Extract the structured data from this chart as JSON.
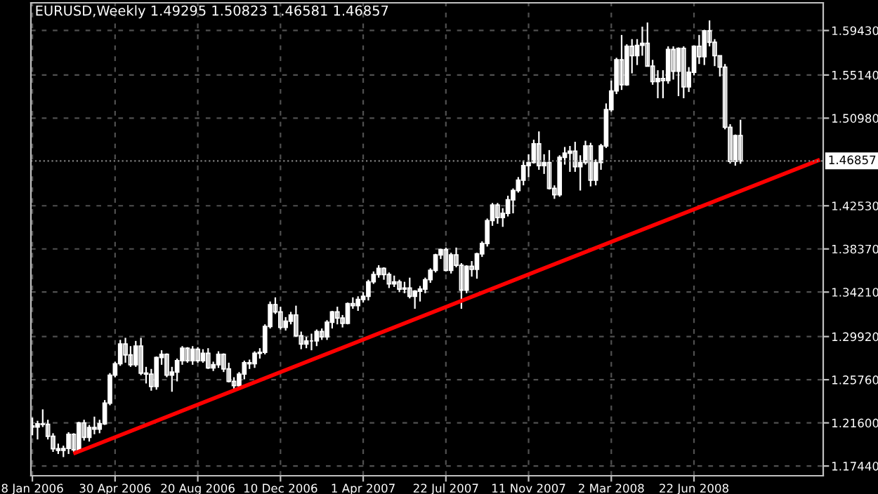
{
  "chart_data": {
    "type": "candlestick",
    "title": "EURUSD,Weekly 1.49295 1.50823 1.46581 1.46857",
    "x": [
      "2006-01-08",
      "2006-01-15",
      "2006-01-22",
      "2006-01-29",
      "2006-02-05",
      "2006-02-12",
      "2006-02-19",
      "2006-02-26",
      "2006-03-05",
      "2006-03-12",
      "2006-03-19",
      "2006-03-26",
      "2006-04-02",
      "2006-04-09",
      "2006-04-16",
      "2006-04-23",
      "2006-04-30",
      "2006-05-07",
      "2006-05-14",
      "2006-05-21",
      "2006-05-28",
      "2006-06-04",
      "2006-06-11",
      "2006-06-18",
      "2006-06-25",
      "2006-07-02",
      "2006-07-09",
      "2006-07-16",
      "2006-07-23",
      "2006-07-30",
      "2006-08-06",
      "2006-08-13",
      "2006-08-20",
      "2006-08-27",
      "2006-09-03",
      "2006-09-10",
      "2006-09-17",
      "2006-09-24",
      "2006-10-01",
      "2006-10-08",
      "2006-10-15",
      "2006-10-22",
      "2006-10-29",
      "2006-11-05",
      "2006-11-12",
      "2006-11-19",
      "2006-11-26",
      "2006-12-03",
      "2006-12-10",
      "2006-12-17",
      "2006-12-24",
      "2006-12-31",
      "2007-01-07",
      "2007-01-14",
      "2007-01-21",
      "2007-01-28",
      "2007-02-04",
      "2007-02-11",
      "2007-02-18",
      "2007-02-25",
      "2007-03-04",
      "2007-03-11",
      "2007-03-18",
      "2007-03-25",
      "2007-04-01",
      "2007-04-08",
      "2007-04-15",
      "2007-04-22",
      "2007-04-29",
      "2007-05-06",
      "2007-05-13",
      "2007-05-20",
      "2007-05-27",
      "2007-06-03",
      "2007-06-10",
      "2007-06-17",
      "2007-06-24",
      "2007-07-01",
      "2007-07-08",
      "2007-07-15",
      "2007-07-22",
      "2007-07-29",
      "2007-08-05",
      "2007-08-12",
      "2007-08-19",
      "2007-08-26",
      "2007-09-02",
      "2007-09-09",
      "2007-09-16",
      "2007-09-23",
      "2007-09-30",
      "2007-10-07",
      "2007-10-14",
      "2007-10-21",
      "2007-10-28",
      "2007-11-04",
      "2007-11-11",
      "2007-11-18",
      "2007-11-25",
      "2007-12-02",
      "2007-12-09",
      "2007-12-16",
      "2007-12-23",
      "2007-12-30",
      "2008-01-06",
      "2008-01-13",
      "2008-01-20",
      "2008-01-27",
      "2008-02-03",
      "2008-02-10",
      "2008-02-17",
      "2008-02-24",
      "2008-03-02",
      "2008-03-09",
      "2008-03-16",
      "2008-03-23",
      "2008-03-30",
      "2008-04-06",
      "2008-04-13",
      "2008-04-20",
      "2008-04-27",
      "2008-05-04",
      "2008-05-11",
      "2008-05-18",
      "2008-05-25",
      "2008-06-01",
      "2008-06-08",
      "2008-06-15",
      "2008-06-22",
      "2008-06-29",
      "2008-07-06",
      "2008-07-13",
      "2008-07-20",
      "2008-07-27",
      "2008-08-03",
      "2008-08-10",
      "2008-08-17",
      "2008-08-24"
    ],
    "ohlc": [
      [
        1.213,
        1.221,
        1.204,
        1.212
      ],
      [
        1.212,
        1.218,
        1.2,
        1.215
      ],
      [
        1.215,
        1.229,
        1.212,
        1.2145
      ],
      [
        1.2145,
        1.219,
        1.2,
        1.203
      ],
      [
        1.203,
        1.206,
        1.188,
        1.191
      ],
      [
        1.191,
        1.196,
        1.186,
        1.1895
      ],
      [
        1.1895,
        1.194,
        1.183,
        1.1913
      ],
      [
        1.1913,
        1.207,
        1.186,
        1.205
      ],
      [
        1.205,
        1.206,
        1.188,
        1.19
      ],
      [
        1.19,
        1.217,
        1.189,
        1.216
      ],
      [
        1.216,
        1.219,
        1.199,
        1.202
      ],
      [
        1.202,
        1.214,
        1.198,
        1.2115
      ],
      [
        1.2115,
        1.222,
        1.205,
        1.21
      ],
      [
        1.21,
        1.219,
        1.206,
        1.215
      ],
      [
        1.215,
        1.238,
        1.214,
        1.235
      ],
      [
        1.235,
        1.264,
        1.233,
        1.262
      ],
      [
        1.262,
        1.275,
        1.26,
        1.273
      ],
      [
        1.273,
        1.296,
        1.271,
        1.292
      ],
      [
        1.292,
        1.298,
        1.274,
        1.2815
      ],
      [
        1.2815,
        1.29,
        1.27,
        1.272
      ],
      [
        1.272,
        1.295,
        1.27,
        1.29
      ],
      [
        1.29,
        1.298,
        1.262,
        1.264
      ],
      [
        1.264,
        1.27,
        1.254,
        1.263
      ],
      [
        1.263,
        1.268,
        1.247,
        1.251
      ],
      [
        1.251,
        1.28,
        1.248,
        1.279
      ],
      [
        1.279,
        1.286,
        1.272,
        1.282
      ],
      [
        1.282,
        1.283,
        1.26,
        1.262
      ],
      [
        1.262,
        1.27,
        1.246,
        1.265
      ],
      [
        1.265,
        1.278,
        1.256,
        1.276
      ],
      [
        1.276,
        1.29,
        1.272,
        1.288
      ],
      [
        1.288,
        1.289,
        1.274,
        1.276
      ],
      [
        1.276,
        1.29,
        1.272,
        1.287
      ],
      [
        1.287,
        1.289,
        1.274,
        1.276
      ],
      [
        1.276,
        1.287,
        1.274,
        1.283
      ],
      [
        1.283,
        1.288,
        1.268,
        1.269
      ],
      [
        1.269,
        1.275,
        1.266,
        1.272
      ],
      [
        1.272,
        1.285,
        1.269,
        1.282
      ],
      [
        1.282,
        1.283,
        1.265,
        1.268
      ],
      [
        1.268,
        1.274,
        1.255,
        1.256
      ],
      [
        1.256,
        1.26,
        1.248,
        1.252
      ],
      [
        1.252,
        1.265,
        1.25,
        1.263
      ],
      [
        1.263,
        1.276,
        1.258,
        1.274
      ],
      [
        1.274,
        1.277,
        1.268,
        1.273
      ],
      [
        1.273,
        1.285,
        1.269,
        1.283
      ],
      [
        1.283,
        1.288,
        1.278,
        1.284
      ],
      [
        1.284,
        1.311,
        1.282,
        1.309
      ],
      [
        1.309,
        1.333,
        1.307,
        1.33
      ],
      [
        1.33,
        1.337,
        1.321,
        1.323
      ],
      [
        1.323,
        1.328,
        1.306,
        1.308
      ],
      [
        1.308,
        1.318,
        1.305,
        1.314
      ],
      [
        1.314,
        1.323,
        1.311,
        1.32
      ],
      [
        1.32,
        1.329,
        1.299,
        1.3
      ],
      [
        1.3,
        1.304,
        1.287,
        1.292
      ],
      [
        1.292,
        1.299,
        1.288,
        1.295
      ],
      [
        1.295,
        1.302,
        1.286,
        1.295
      ],
      [
        1.295,
        1.306,
        1.29,
        1.304
      ],
      [
        1.304,
        1.307,
        1.296,
        1.299
      ],
      [
        1.299,
        1.315,
        1.296,
        1.313
      ],
      [
        1.313,
        1.324,
        1.307,
        1.323
      ],
      [
        1.323,
        1.328,
        1.311,
        1.317
      ],
      [
        1.317,
        1.32,
        1.308,
        1.312
      ],
      [
        1.312,
        1.332,
        1.311,
        1.331
      ],
      [
        1.331,
        1.337,
        1.326,
        1.329
      ],
      [
        1.329,
        1.338,
        1.324,
        1.335
      ],
      [
        1.335,
        1.342,
        1.332,
        1.338
      ],
      [
        1.338,
        1.354,
        1.334,
        1.352
      ],
      [
        1.352,
        1.362,
        1.35,
        1.359
      ],
      [
        1.359,
        1.368,
        1.356,
        1.365
      ],
      [
        1.365,
        1.366,
        1.354,
        1.359
      ],
      [
        1.359,
        1.361,
        1.346,
        1.35
      ],
      [
        1.35,
        1.358,
        1.347,
        1.352
      ],
      [
        1.352,
        1.354,
        1.342,
        1.345
      ],
      [
        1.345,
        1.352,
        1.341,
        1.346
      ],
      [
        1.346,
        1.356,
        1.336,
        1.338
      ],
      [
        1.338,
        1.344,
        1.326,
        1.343
      ],
      [
        1.343,
        1.348,
        1.333,
        1.345
      ],
      [
        1.345,
        1.356,
        1.341,
        1.354
      ],
      [
        1.354,
        1.365,
        1.351,
        1.363
      ],
      [
        1.363,
        1.379,
        1.361,
        1.378
      ],
      [
        1.378,
        1.384,
        1.374,
        1.383
      ],
      [
        1.383,
        1.385,
        1.362,
        1.363
      ],
      [
        1.363,
        1.38,
        1.36,
        1.378
      ],
      [
        1.378,
        1.385,
        1.366,
        1.368
      ],
      [
        1.368,
        1.37,
        1.326,
        1.344
      ],
      [
        1.344,
        1.368,
        1.341,
        1.367
      ],
      [
        1.367,
        1.372,
        1.357,
        1.364
      ],
      [
        1.364,
        1.38,
        1.355,
        1.379
      ],
      [
        1.379,
        1.391,
        1.376,
        1.389
      ],
      [
        1.389,
        1.413,
        1.386,
        1.411
      ],
      [
        1.411,
        1.428,
        1.406,
        1.426
      ],
      [
        1.426,
        1.428,
        1.408,
        1.414
      ],
      [
        1.414,
        1.423,
        1.405,
        1.418
      ],
      [
        1.418,
        1.435,
        1.415,
        1.431
      ],
      [
        1.431,
        1.442,
        1.418,
        1.44
      ],
      [
        1.44,
        1.453,
        1.438,
        1.45
      ],
      [
        1.45,
        1.469,
        1.445,
        1.464
      ],
      [
        1.464,
        1.475,
        1.453,
        1.467
      ],
      [
        1.467,
        1.489,
        1.466,
        1.485
      ],
      [
        1.485,
        1.497,
        1.46,
        1.464
      ],
      [
        1.464,
        1.475,
        1.456,
        1.467
      ],
      [
        1.467,
        1.479,
        1.441,
        1.442
      ],
      [
        1.442,
        1.445,
        1.432,
        1.436
      ],
      [
        1.436,
        1.474,
        1.434,
        1.472
      ],
      [
        1.472,
        1.482,
        1.465,
        1.476
      ],
      [
        1.476,
        1.483,
        1.458,
        1.478
      ],
      [
        1.478,
        1.487,
        1.458,
        1.463
      ],
      [
        1.463,
        1.474,
        1.44,
        1.467
      ],
      [
        1.467,
        1.488,
        1.465,
        1.483
      ],
      [
        1.483,
        1.486,
        1.444,
        1.45
      ],
      [
        1.45,
        1.47,
        1.445,
        1.467
      ],
      [
        1.467,
        1.485,
        1.46,
        1.483
      ],
      [
        1.483,
        1.524,
        1.481,
        1.518
      ],
      [
        1.518,
        1.546,
        1.516,
        1.536
      ],
      [
        1.536,
        1.568,
        1.533,
        1.566
      ],
      [
        1.566,
        1.59,
        1.537,
        1.542
      ],
      [
        1.542,
        1.581,
        1.541,
        1.579
      ],
      [
        1.579,
        1.586,
        1.553,
        1.57
      ],
      [
        1.57,
        1.586,
        1.561,
        1.58
      ],
      [
        1.58,
        1.598,
        1.57,
        1.582
      ],
      [
        1.582,
        1.602,
        1.56,
        1.56
      ],
      [
        1.56,
        1.566,
        1.542,
        1.545
      ],
      [
        1.545,
        1.556,
        1.529,
        1.548
      ],
      [
        1.548,
        1.556,
        1.529,
        1.546
      ],
      [
        1.546,
        1.579,
        1.543,
        1.576
      ],
      [
        1.576,
        1.579,
        1.547,
        1.555
      ],
      [
        1.555,
        1.578,
        1.531,
        1.577
      ],
      [
        1.577,
        1.579,
        1.529,
        1.54
      ],
      [
        1.54,
        1.559,
        1.535,
        1.554
      ],
      [
        1.554,
        1.58,
        1.551,
        1.579
      ],
      [
        1.579,
        1.59,
        1.562,
        1.569
      ],
      [
        1.569,
        1.595,
        1.561,
        1.594
      ],
      [
        1.594,
        1.604,
        1.579,
        1.583
      ],
      [
        1.583,
        1.586,
        1.56,
        1.57
      ],
      [
        1.57,
        1.57,
        1.55,
        1.559
      ],
      [
        1.559,
        1.562,
        1.499,
        1.501
      ],
      [
        1.501,
        1.504,
        1.466,
        1.468
      ],
      [
        1.468,
        1.494,
        1.464,
        1.493
      ],
      [
        1.49295,
        1.50823,
        1.46581,
        1.46857
      ]
    ],
    "color": "#ffffff",
    "series": [
      {
        "type": "line",
        "color": "#ff0000",
        "x": [
          "2006-03-07",
          "2008-12-07"
        ],
        "values": [
          1.187,
          1.469
        ]
      }
    ],
    "ref_lines": [
      {
        "axis": "y",
        "value": 1.46857,
        "label": "1.46857",
        "color": "#808080",
        "line_style": "dotted"
      }
    ],
    "xlim": [
      "2006-01-06",
      "2008-12-14"
    ],
    "xticks": [
      {
        "value": "2006-01-08",
        "label": "8 Jan 2006"
      },
      {
        "value": "2006-04-30",
        "label": "30 Apr 2006"
      },
      {
        "value": "2006-08-20",
        "label": "20 Aug 2006"
      },
      {
        "value": "2006-12-10",
        "label": "10 Dec 2006"
      },
      {
        "value": "2007-04-01",
        "label": "1 Apr 2007"
      },
      {
        "value": "2007-07-22",
        "label": "22 Jul 2007"
      },
      {
        "value": "2007-11-11",
        "label": "11 Nov 2007"
      },
      {
        "value": "2008-03-02",
        "label": "2 Mar 2008"
      },
      {
        "value": "2008-06-22",
        "label": "22 Jun 2008"
      }
    ],
    "ylim": [
      1.165,
      1.621
    ],
    "yticks": [
      {
        "value": 1.1744,
        "label": "1.17440"
      },
      {
        "value": 1.216,
        "label": "1.21600"
      },
      {
        "value": 1.2576,
        "label": "1.25760"
      },
      {
        "value": 1.2992,
        "label": "1.29920"
      },
      {
        "value": 1.3421,
        "label": "1.34210"
      },
      {
        "value": 1.3837,
        "label": "1.38370"
      },
      {
        "value": 1.4253,
        "label": "1.42530"
      },
      {
        "value": 1.5098,
        "label": "1.50980"
      },
      {
        "value": 1.5514,
        "label": "1.55140"
      },
      {
        "value": 1.5943,
        "label": "1.59430"
      }
    ],
    "grid": true
  }
}
